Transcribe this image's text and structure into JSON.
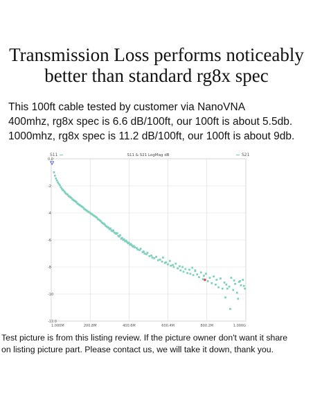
{
  "headline": {
    "line1": "Transmission Loss performs noticeably",
    "line2": "better than standard rg8x spec"
  },
  "description": {
    "line1": "This 100ft cable tested by customer via NanoVNA",
    "line2": "400mhz, rg8x spec is 6.6 dB/100ft, our 100ft is about 5.5db.",
    "line3": "1000mhz, rg8x spec is 11.2 dB/100ft, our 100ft is about 9db."
  },
  "footer": {
    "line1": "Test picture is from this listing review. If the picture owner don't want it share",
    "line2": "on listing picture part. Please contact us, we will take it down, thank you."
  },
  "chart_data": {
    "type": "scatter",
    "title": "S11 & S21 LogMag dB",
    "legend_left": "S11",
    "legend_right": "S21",
    "xlim": [
      1,
      1000
    ],
    "ylim": [
      -12,
      0
    ],
    "x_ticks": [
      1,
      200.8,
      400.6,
      600.4,
      800.2,
      1000
    ],
    "x_tick_labels": [
      "1.000M",
      "200.8M",
      "400.6M",
      "600.4M",
      "800.2M",
      "1.000G"
    ],
    "y_ticks": [
      0,
      -2,
      -4,
      -6,
      -8,
      -10,
      -12
    ],
    "y_tick_labels": [
      "0.0",
      "-2",
      "-4",
      "-6",
      "-8",
      "-10",
      "-12.0"
    ],
    "grid": true,
    "marker_color": "#7fd1bf",
    "marker_color_s11": "#3a4bd6",
    "marker_color_red": "#e05050",
    "series": [
      {
        "name": "S21",
        "points": [
          [
            15,
            -1.0
          ],
          [
            20,
            -1.25
          ],
          [
            25,
            -1.45
          ],
          [
            30,
            -1.6
          ],
          [
            35,
            -1.75
          ],
          [
            40,
            -1.85
          ],
          [
            45,
            -1.95
          ],
          [
            50,
            -2.1
          ],
          [
            55,
            -2.2
          ],
          [
            60,
            -2.3
          ],
          [
            65,
            -2.35
          ],
          [
            70,
            -2.45
          ],
          [
            75,
            -2.55
          ],
          [
            80,
            -2.6
          ],
          [
            85,
            -2.65
          ],
          [
            90,
            -2.75
          ],
          [
            95,
            -2.8
          ],
          [
            100,
            -2.85
          ],
          [
            105,
            -2.9
          ],
          [
            110,
            -3.0
          ],
          [
            115,
            -3.05
          ],
          [
            120,
            -3.1
          ],
          [
            125,
            -3.15
          ],
          [
            130,
            -3.2
          ],
          [
            135,
            -3.3
          ],
          [
            140,
            -3.35
          ],
          [
            145,
            -3.4
          ],
          [
            150,
            -3.45
          ],
          [
            155,
            -3.5
          ],
          [
            160,
            -3.55
          ],
          [
            165,
            -3.6
          ],
          [
            170,
            -3.7
          ],
          [
            175,
            -3.75
          ],
          [
            180,
            -3.8
          ],
          [
            185,
            -3.85
          ],
          [
            190,
            -3.9
          ],
          [
            195,
            -3.95
          ],
          [
            200,
            -4.0
          ],
          [
            205,
            -4.05
          ],
          [
            210,
            -4.1
          ],
          [
            215,
            -4.15
          ],
          [
            220,
            -4.2
          ],
          [
            225,
            -4.25
          ],
          [
            230,
            -4.3
          ],
          [
            235,
            -4.35
          ],
          [
            240,
            -4.45
          ],
          [
            245,
            -4.5
          ],
          [
            250,
            -4.55
          ],
          [
            255,
            -4.6
          ],
          [
            260,
            -4.7
          ],
          [
            265,
            -4.75
          ],
          [
            270,
            -4.8
          ],
          [
            275,
            -4.85
          ],
          [
            280,
            -4.95
          ],
          [
            285,
            -5.0
          ],
          [
            290,
            -5.05
          ],
          [
            295,
            -5.1
          ],
          [
            300,
            -5.2
          ],
          [
            305,
            -5.15
          ],
          [
            310,
            -5.3
          ],
          [
            315,
            -5.35
          ],
          [
            320,
            -5.3
          ],
          [
            325,
            -5.45
          ],
          [
            330,
            -5.5
          ],
          [
            335,
            -5.55
          ],
          [
            340,
            -5.5
          ],
          [
            345,
            -5.7
          ],
          [
            350,
            -5.75
          ],
          [
            355,
            -5.65
          ],
          [
            360,
            -5.9
          ],
          [
            365,
            -5.85
          ],
          [
            370,
            -6.0
          ],
          [
            375,
            -5.95
          ],
          [
            380,
            -6.1
          ],
          [
            385,
            -6.05
          ],
          [
            390,
            -6.15
          ],
          [
            395,
            -6.25
          ],
          [
            400,
            -6.2
          ],
          [
            405,
            -6.35
          ],
          [
            410,
            -6.3
          ],
          [
            415,
            -6.4
          ],
          [
            420,
            -6.5
          ],
          [
            425,
            -6.45
          ],
          [
            430,
            -6.55
          ],
          [
            440,
            -6.6
          ],
          [
            445,
            -6.7
          ],
          [
            455,
            -6.75
          ],
          [
            460,
            -6.65
          ],
          [
            470,
            -6.9
          ],
          [
            475,
            -6.85
          ],
          [
            480,
            -7.0
          ],
          [
            490,
            -7.05
          ],
          [
            495,
            -6.95
          ],
          [
            505,
            -7.2
          ],
          [
            515,
            -7.15
          ],
          [
            520,
            -7.3
          ],
          [
            530,
            -7.35
          ],
          [
            540,
            -7.25
          ],
          [
            550,
            -7.5
          ],
          [
            560,
            -7.45
          ],
          [
            570,
            -7.6
          ],
          [
            575,
            -7.3
          ],
          [
            585,
            -7.7
          ],
          [
            590,
            -7.65
          ],
          [
            600,
            -7.8
          ],
          [
            610,
            -7.55
          ],
          [
            615,
            -7.9
          ],
          [
            625,
            -7.85
          ],
          [
            630,
            -8.0
          ],
          [
            640,
            -7.75
          ],
          [
            650,
            -8.1
          ],
          [
            660,
            -7.95
          ],
          [
            665,
            -8.25
          ],
          [
            675,
            -8.0
          ],
          [
            680,
            -8.35
          ],
          [
            690,
            -8.15
          ],
          [
            700,
            -8.45
          ],
          [
            710,
            -8.2
          ],
          [
            715,
            -8.5
          ],
          [
            725,
            -8.05
          ],
          [
            730,
            -8.6
          ],
          [
            740,
            -8.3
          ],
          [
            750,
            -8.55
          ],
          [
            760,
            -8.75
          ],
          [
            770,
            -8.4
          ],
          [
            780,
            -8.9
          ],
          [
            785,
            -8.65
          ],
          [
            795,
            -8.5
          ],
          [
            805,
            -9.05
          ],
          [
            815,
            -8.8
          ],
          [
            825,
            -9.2
          ],
          [
            835,
            -8.7
          ],
          [
            845,
            -9.3
          ],
          [
            850,
            -8.95
          ],
          [
            860,
            -9.5
          ],
          [
            870,
            -8.85
          ],
          [
            880,
            -9.6
          ],
          [
            890,
            -9.15
          ],
          [
            900,
            -9.3
          ],
          [
            915,
            -9.45
          ],
          [
            925,
            -8.8
          ],
          [
            935,
            -9.7
          ],
          [
            945,
            -9.25
          ],
          [
            955,
            -9.9
          ],
          [
            965,
            -9.1
          ],
          [
            975,
            -9.35
          ],
          [
            985,
            -8.95
          ],
          [
            995,
            -9.6
          ],
          [
            740,
            -8.25
          ],
          [
            895,
            -10.25
          ],
          [
            905,
            -9.6
          ],
          [
            920,
            -11.1
          ],
          [
            940,
            -9.0
          ],
          [
            960,
            -10.35
          ],
          [
            970,
            -9.05
          ],
          [
            990,
            -9.4
          ]
        ]
      }
    ],
    "s11_marker": [
      5,
      -0.3
    ],
    "red_marker": [
      790,
      -8.95
    ]
  }
}
